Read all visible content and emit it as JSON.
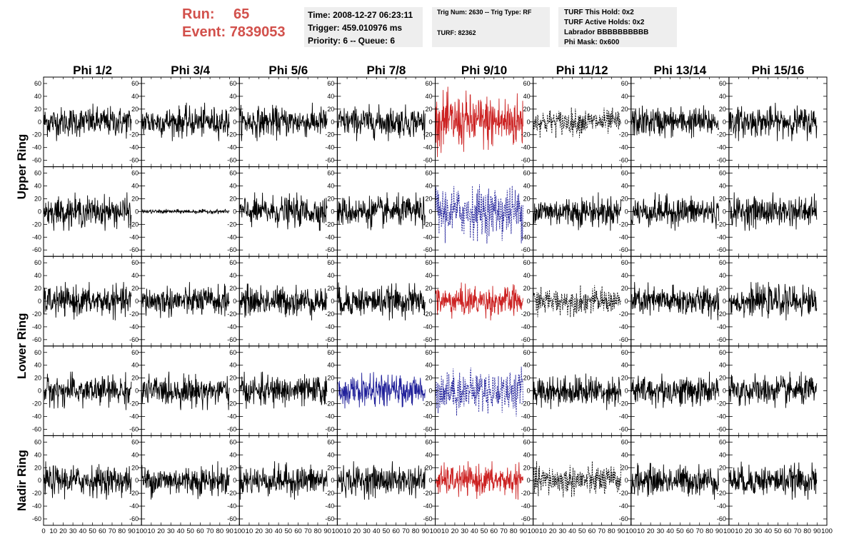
{
  "header": {
    "run_label": "Run:",
    "run_value": "65",
    "event_label": "Event:",
    "event_value": "7839053"
  },
  "info_box_1": {
    "time": "Time: 2008-12-27 06:23:11",
    "trigger": "Trigger: 459.010976 ms",
    "priority": "Priority: 6 -- Queue: 6"
  },
  "info_box_2": {
    "trig": "Trig Num: 2630 -- Trig Type: RF",
    "turf": "TURF: 82362"
  },
  "info_box_3": {
    "this_hold": "TURF This Hold: 0x2",
    "active_holds": "TURF Active Holds: 0x2",
    "labrador": "Labrador BBBBBBBBBB",
    "phi_mask": "Phi Mask: 0x600"
  },
  "chart_data": {
    "type": "line",
    "columns": [
      "Phi 1/2",
      "Phi 3/4",
      "Phi 5/6",
      "Phi 7/8",
      "Phi 9/10",
      "Phi 11/12",
      "Phi 13/14",
      "Phi 15/16"
    ],
    "rows": [
      "Upper Ring",
      "Lower Ring",
      "Nadir Ring"
    ],
    "row_band_rows": [
      [
        0,
        1
      ],
      [
        2,
        3
      ],
      [
        4
      ]
    ],
    "xlim": [
      0,
      100
    ],
    "ylim": [
      -70,
      70
    ],
    "x_tick_labels": [
      "0",
      "10",
      "20",
      "30",
      "40",
      "50",
      "60",
      "70",
      "80",
      "90",
      "100"
    ],
    "y_tick_labels": [
      "60",
      "40",
      "20",
      "0",
      "-20",
      "-40",
      "-60"
    ],
    "colors": {
      "default": "#000000",
      "red": "#cc2222",
      "blue": "#1f1f99"
    },
    "highlighted_panels": [
      {
        "panel_row": 0,
        "col": 4,
        "color": "red",
        "style": "solid",
        "amplitude": 55
      },
      {
        "panel_row": 0,
        "col": 5,
        "color": "default",
        "style": "dashed",
        "amplitude": 25
      },
      {
        "panel_row": 1,
        "col": 1,
        "color": "default",
        "style": "solid",
        "amplitude": 4
      },
      {
        "panel_row": 1,
        "col": 4,
        "color": "blue",
        "style": "dashed",
        "amplitude": 50
      },
      {
        "panel_row": 2,
        "col": 4,
        "color": "red",
        "style": "solid",
        "amplitude": 30
      },
      {
        "panel_row": 2,
        "col": 5,
        "color": "default",
        "style": "dashed",
        "amplitude": 25
      },
      {
        "panel_row": 3,
        "col": 3,
        "color": "blue",
        "style": "solid",
        "amplitude": 30
      },
      {
        "panel_row": 3,
        "col": 4,
        "color": "blue",
        "style": "dashed",
        "amplitude": 40
      },
      {
        "panel_row": 4,
        "col": 4,
        "color": "red",
        "style": "solid",
        "amplitude": 30
      },
      {
        "panel_row": 4,
        "col": 5,
        "color": "default",
        "style": "dashed",
        "amplitude": 30
      }
    ],
    "default_amplitude": 30,
    "grid": false
  }
}
